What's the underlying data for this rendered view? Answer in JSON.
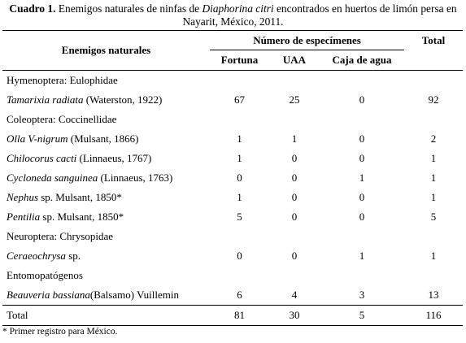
{
  "caption": {
    "label": "Cuadro 1.",
    "text_before": " Enemigos naturales de ninfas de ",
    "italic": "Diaphorina citri",
    "text_after": " encontrados en huertos de limón persa en Nayarit, México, 2011."
  },
  "headers": {
    "enemies": "Enemigos naturales",
    "specimens": "Número de especímenes",
    "total": "Total",
    "sub": [
      "Fortuna",
      "UAA",
      "Caja de agua"
    ]
  },
  "rows": [
    {
      "type": "group",
      "name": "Hymenoptera: Eulophidae"
    },
    {
      "type": "species",
      "species": "Tamarixia radiata",
      "author": " (Waterston, 1922)",
      "values": [
        "67",
        "25",
        "0",
        "92"
      ]
    },
    {
      "type": "group",
      "name": "Coleoptera: Coccinellidae"
    },
    {
      "type": "species",
      "species": "Olla V-nigrum",
      "author": " (Mulsant, 1866)",
      "values": [
        "1",
        "1",
        "0",
        "2"
      ]
    },
    {
      "type": "species",
      "species": "Chilocorus cacti",
      "author": " (Linnaeus, 1767)",
      "values": [
        "1",
        "0",
        "0",
        "1"
      ]
    },
    {
      "type": "species",
      "species": "Cycloneda sanguinea",
      "author": " (Linnaeus, 1763)",
      "values": [
        "0",
        "0",
        "1",
        "1"
      ]
    },
    {
      "type": "species",
      "species": "Nephus",
      "author": " sp. Mulsant, 1850*",
      "values": [
        "1",
        "0",
        "0",
        "1"
      ]
    },
    {
      "type": "species",
      "species": "Pentilia",
      "author": " sp. Mulsant, 1850*",
      "values": [
        "5",
        "0",
        "0",
        "5"
      ]
    },
    {
      "type": "group",
      "name": "Neuroptera: Chrysopidae"
    },
    {
      "type": "species",
      "species": "Ceraeochrysa",
      "author": " sp.",
      "values": [
        "0",
        "0",
        "1",
        "1"
      ]
    },
    {
      "type": "group",
      "name": "Entomopatógenos"
    },
    {
      "type": "species",
      "species": "Beauveria bassiana",
      "author": "(Balsamo) Vuillemin",
      "values": [
        "6",
        "4",
        "3",
        "13"
      ]
    }
  ],
  "total_row": {
    "label": "Total",
    "values": [
      "81",
      "30",
      "5",
      "116"
    ]
  },
  "footnote": "* Primer registro para México."
}
